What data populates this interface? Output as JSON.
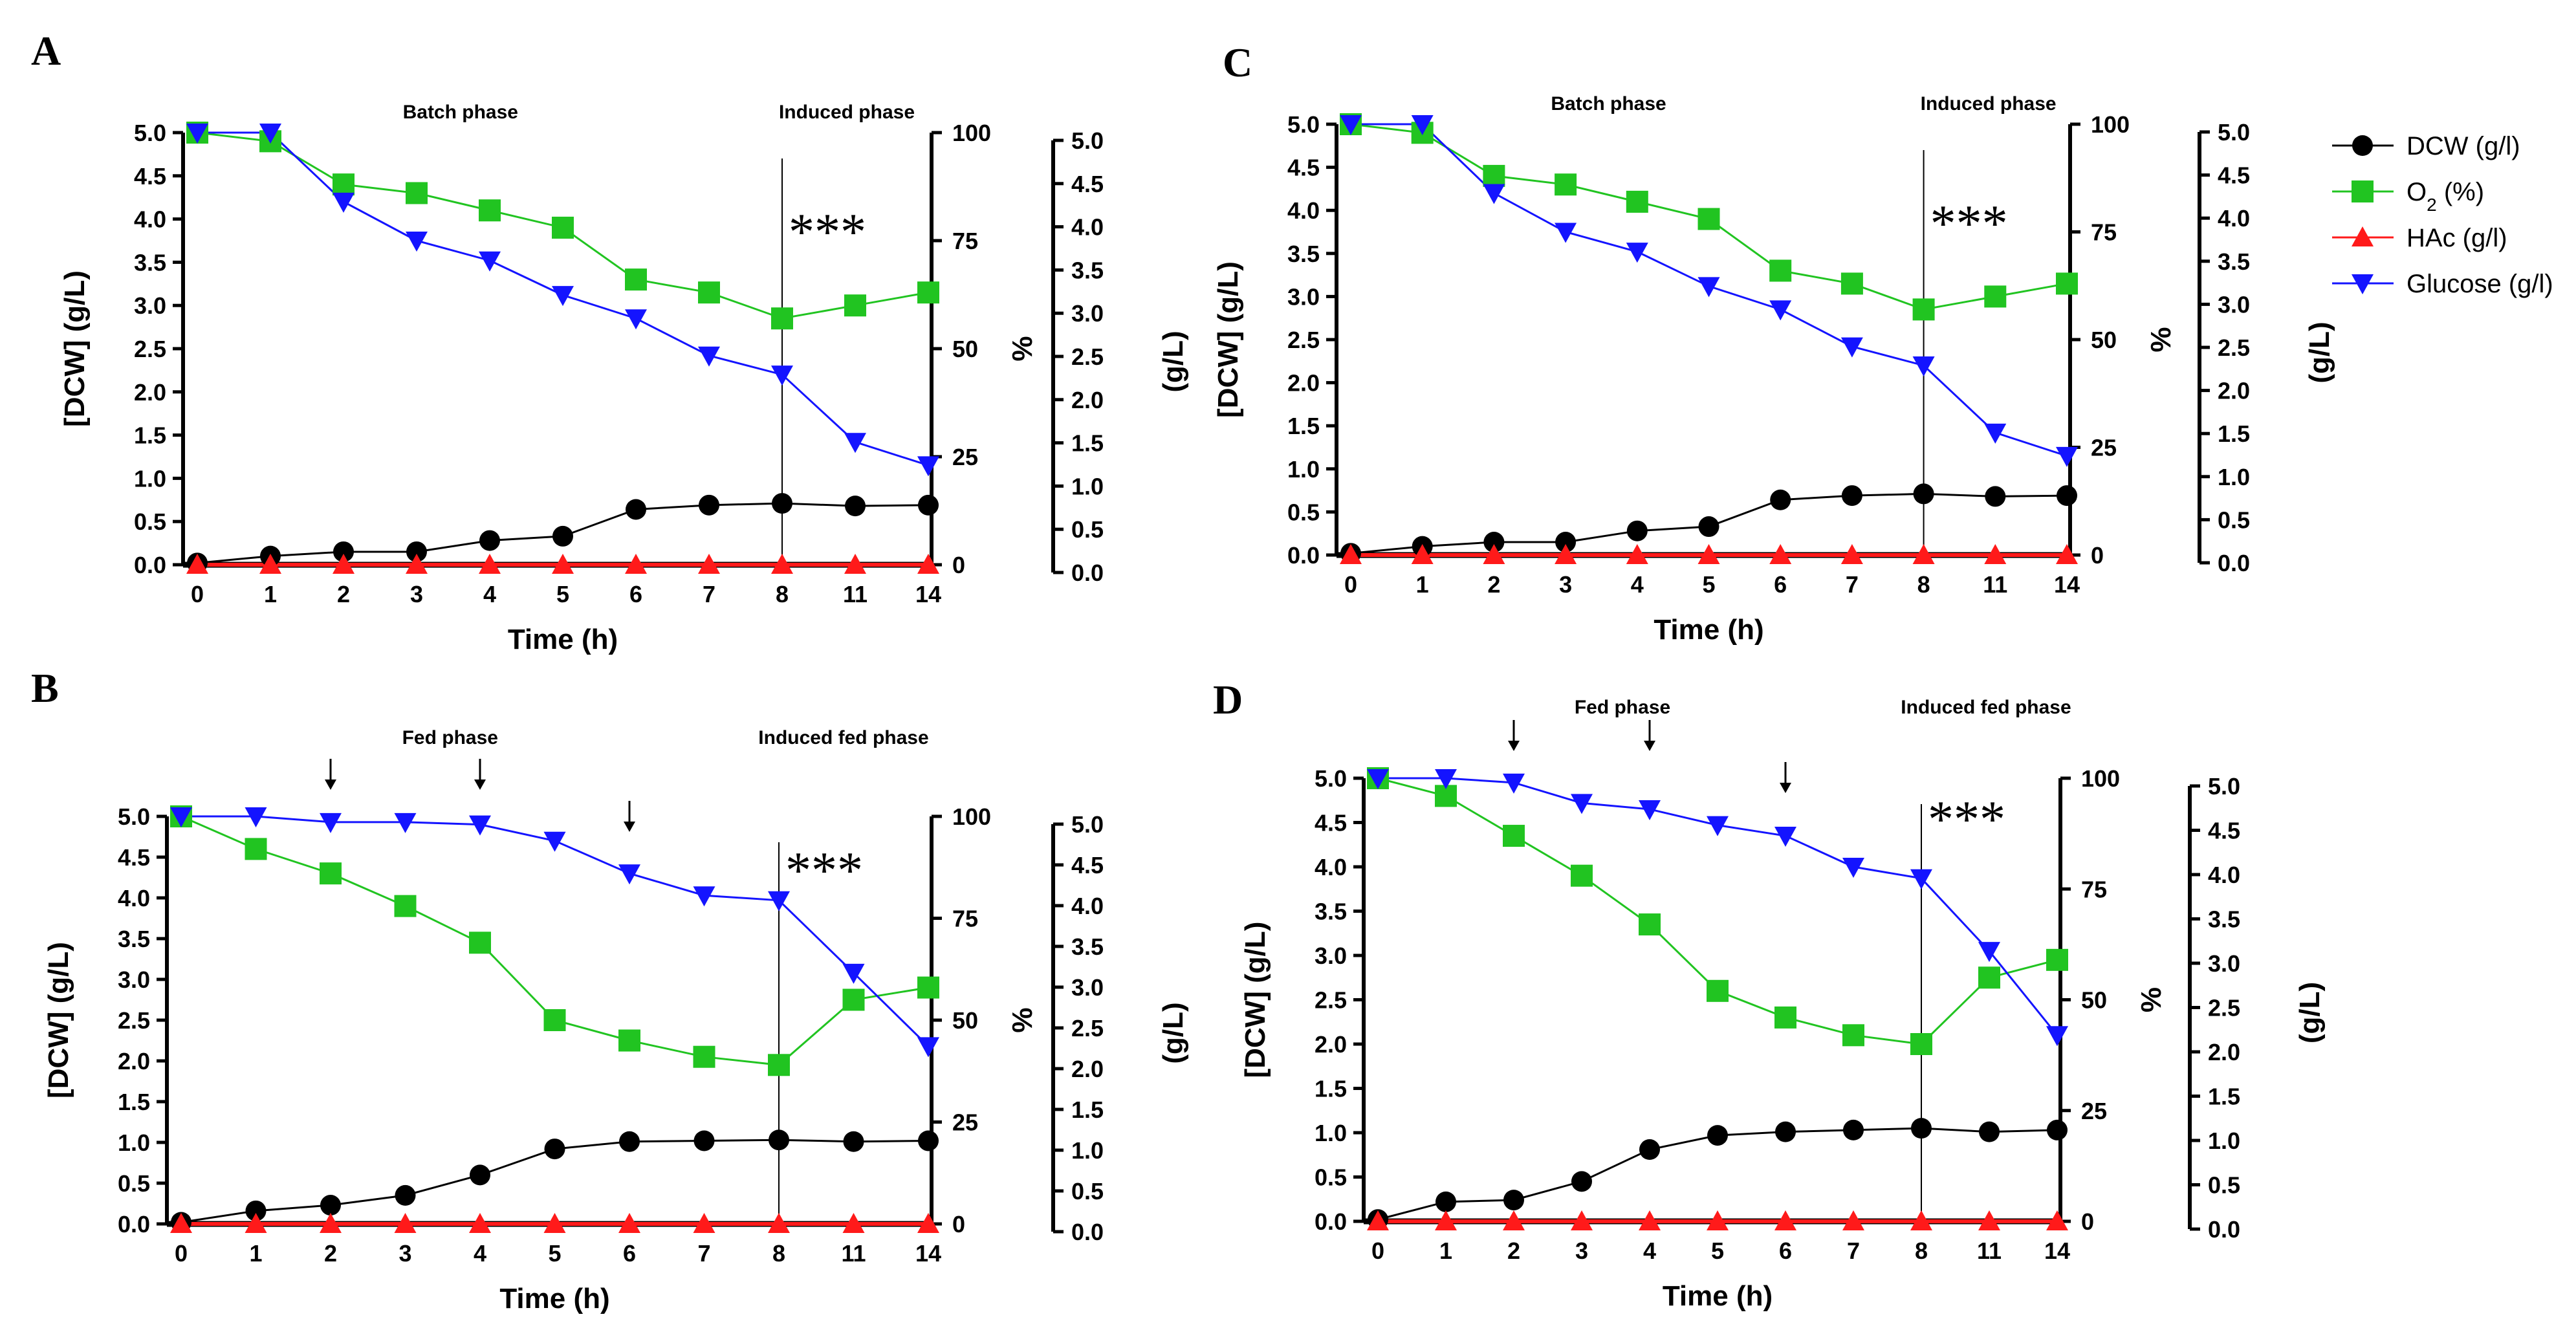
{
  "legend": {
    "items": [
      {
        "label": "DCW (g/l)",
        "color": "#000000",
        "marker": "circle"
      },
      {
        "label": "O2 (%)",
        "label_main": "O",
        "label_sub": "2",
        "label_rest": " (%)",
        "color": "#21c421",
        "marker": "square"
      },
      {
        "label": "HAc (g/l)",
        "color": "#ff1a1a",
        "marker": "triangle-up"
      },
      {
        "label": "Glucose (g/l)",
        "color": "#1414ff",
        "marker": "triangle-down"
      }
    ]
  },
  "chart_data": [
    {
      "panel": "A",
      "type": "line",
      "categories": [
        "0",
        "1",
        "2",
        "3",
        "4",
        "5",
        "6",
        "7",
        "8",
        "11",
        "14"
      ],
      "xlabel": "Time (h)",
      "ylabel": "[DCW] (g/L)",
      "ylabel_right1": "%",
      "ylabel_right2": "(g/L)",
      "ylim": [
        0,
        5
      ],
      "yticks": [
        "0.0",
        "0.5",
        "1.0",
        "1.5",
        "2.0",
        "2.5",
        "3.0",
        "3.5",
        "4.0",
        "4.5",
        "5.0"
      ],
      "y2lim": [
        0,
        100
      ],
      "y2ticks": [
        "0",
        "25",
        "50",
        "75",
        "100"
      ],
      "y3lim": [
        0,
        5
      ],
      "y3ticks": [
        "0.0",
        "0.5",
        "1.0",
        "1.5",
        "2.0",
        "2.5",
        "3.0",
        "3.5",
        "4.0",
        "4.5",
        "5.0"
      ],
      "phase_labels": [
        "Batch phase",
        "Induced phase"
      ],
      "annotation": "***",
      "induction_index": 8,
      "feed_arrows": [],
      "series": [
        {
          "name": "DCW (g/l)",
          "axis": "left",
          "values": [
            0.02,
            0.1,
            0.15,
            0.15,
            0.28,
            0.33,
            0.64,
            0.69,
            0.71,
            0.68,
            0.69
          ]
        },
        {
          "name": "O2 (%)",
          "axis": "right",
          "values": [
            100,
            98,
            88,
            86,
            82,
            78,
            66,
            63,
            57,
            60,
            63
          ]
        },
        {
          "name": "HAc (g/l)",
          "axis": "left",
          "values": [
            0,
            0,
            0,
            0,
            0,
            0,
            0,
            0,
            0,
            0,
            0
          ]
        },
        {
          "name": "Glucose (g/l)",
          "axis": "left",
          "values": [
            5.0,
            5.0,
            4.2,
            3.75,
            3.52,
            3.12,
            2.85,
            2.42,
            2.2,
            1.42,
            1.15
          ]
        }
      ]
    },
    {
      "panel": "B",
      "type": "line",
      "categories": [
        "0",
        "1",
        "2",
        "3",
        "4",
        "5",
        "6",
        "7",
        "8",
        "11",
        "14"
      ],
      "xlabel": "Time (h)",
      "ylabel": "[DCW] (g/L)",
      "ylabel_right1": "%",
      "ylabel_right2": "(g/L)",
      "ylim": [
        0,
        5
      ],
      "yticks": [
        "0.0",
        "0.5",
        "1.0",
        "1.5",
        "2.0",
        "2.5",
        "3.0",
        "3.5",
        "4.0",
        "4.5",
        "5.0"
      ],
      "y2lim": [
        0,
        100
      ],
      "y2ticks": [
        "0",
        "25",
        "50",
        "75",
        "100"
      ],
      "y3lim": [
        0,
        5
      ],
      "y3ticks": [
        "0.0",
        "0.5",
        "1.0",
        "1.5",
        "2.0",
        "2.5",
        "3.0",
        "3.5",
        "4.0",
        "4.5",
        "5.0"
      ],
      "phase_labels": [
        "Fed phase",
        "Induced fed phase"
      ],
      "annotation": "***",
      "induction_index": 8,
      "feed_arrows": [
        2,
        4,
        6
      ],
      "series": [
        {
          "name": "DCW (g/l)",
          "axis": "left",
          "values": [
            0.02,
            0.16,
            0.23,
            0.35,
            0.6,
            0.92,
            1.01,
            1.02,
            1.03,
            1.01,
            1.02
          ]
        },
        {
          "name": "O2 (%)",
          "axis": "right",
          "values": [
            100,
            92,
            86,
            78,
            69,
            50,
            45,
            41,
            39,
            55,
            58
          ]
        },
        {
          "name": "HAc (g/l)",
          "axis": "left",
          "values": [
            0,
            0,
            0,
            0,
            0,
            0,
            0,
            0,
            0,
            0,
            0
          ]
        },
        {
          "name": "Glucose (g/l)",
          "axis": "left",
          "values": [
            5.0,
            5.0,
            4.93,
            4.93,
            4.9,
            4.7,
            4.3,
            4.03,
            3.97,
            3.08,
            2.18
          ]
        }
      ]
    },
    {
      "panel": "C",
      "type": "line",
      "categories": [
        "0",
        "1",
        "2",
        "3",
        "4",
        "5",
        "6",
        "7",
        "8",
        "11",
        "14"
      ],
      "xlabel": "Time (h)",
      "ylabel": "[DCW] (g/L)",
      "ylabel_right1": "%",
      "ylabel_right2": "(g/L)",
      "ylim": [
        0,
        5
      ],
      "yticks": [
        "0.0",
        "0.5",
        "1.0",
        "1.5",
        "2.0",
        "2.5",
        "3.0",
        "3.5",
        "4.0",
        "4.5",
        "5.0"
      ],
      "y2lim": [
        0,
        100
      ],
      "y2ticks": [
        "0",
        "25",
        "50",
        "75",
        "100"
      ],
      "y3lim": [
        0,
        5
      ],
      "y3ticks": [
        "0.0",
        "0.5",
        "1.0",
        "1.5",
        "2.0",
        "2.5",
        "3.0",
        "3.5",
        "4.0",
        "4.5",
        "5.0"
      ],
      "phase_labels": [
        "Batch phase",
        "Induced phase"
      ],
      "annotation": "***",
      "induction_index": 8,
      "feed_arrows": [],
      "series": [
        {
          "name": "DCW (g/l)",
          "axis": "left",
          "values": [
            0.02,
            0.1,
            0.15,
            0.15,
            0.28,
            0.33,
            0.64,
            0.69,
            0.71,
            0.68,
            0.69
          ]
        },
        {
          "name": "O2 (%)",
          "axis": "right",
          "values": [
            100,
            98,
            88,
            86,
            82,
            78,
            66,
            63,
            57,
            60,
            63
          ]
        },
        {
          "name": "HAc (g/l)",
          "axis": "left",
          "values": [
            0,
            0,
            0,
            0,
            0,
            0,
            0,
            0,
            0,
            0,
            0
          ]
        },
        {
          "name": "Glucose (g/l)",
          "axis": "left",
          "values": [
            5.0,
            5.0,
            4.2,
            3.75,
            3.52,
            3.12,
            2.85,
            2.42,
            2.2,
            1.42,
            1.15
          ]
        }
      ]
    },
    {
      "panel": "D",
      "type": "line",
      "categories": [
        "0",
        "1",
        "2",
        "3",
        "4",
        "5",
        "6",
        "7",
        "8",
        "11",
        "14"
      ],
      "xlabel": "Time (h)",
      "ylabel": "[DCW] (g/L)",
      "ylabel_right1": "%",
      "ylabel_right2": "(g/L)",
      "ylim": [
        0,
        5
      ],
      "yticks": [
        "0.0",
        "0.5",
        "1.0",
        "1.5",
        "2.0",
        "2.5",
        "3.0",
        "3.5",
        "4.0",
        "4.5",
        "5.0"
      ],
      "y2lim": [
        0,
        100
      ],
      "y2ticks": [
        "0",
        "25",
        "50",
        "75",
        "100"
      ],
      "y3lim": [
        0,
        5
      ],
      "y3ticks": [
        "0.0",
        "0.5",
        "1.0",
        "1.5",
        "2.0",
        "2.5",
        "3.0",
        "3.5",
        "4.0",
        "4.5",
        "5.0"
      ],
      "phase_labels": [
        "Fed phase",
        "Induced fed phase"
      ],
      "annotation": "***",
      "induction_index": 8,
      "feed_arrows": [
        2,
        4,
        6
      ],
      "series": [
        {
          "name": "DCW (g/l)",
          "axis": "left",
          "values": [
            0.02,
            0.22,
            0.24,
            0.45,
            0.81,
            0.97,
            1.01,
            1.03,
            1.05,
            1.01,
            1.03
          ]
        },
        {
          "name": "O2 (%)",
          "axis": "right",
          "values": [
            100,
            96,
            87,
            78,
            67,
            52,
            46,
            42,
            40,
            55,
            59
          ]
        },
        {
          "name": "HAc (g/l)",
          "axis": "left",
          "values": [
            0,
            0,
            0,
            0,
            0,
            0,
            0,
            0,
            0,
            0,
            0
          ]
        },
        {
          "name": "Glucose (g/l)",
          "axis": "left",
          "values": [
            5.0,
            5.0,
            4.95,
            4.72,
            4.65,
            4.47,
            4.35,
            4.0,
            3.87,
            3.05,
            2.1
          ]
        }
      ]
    }
  ]
}
